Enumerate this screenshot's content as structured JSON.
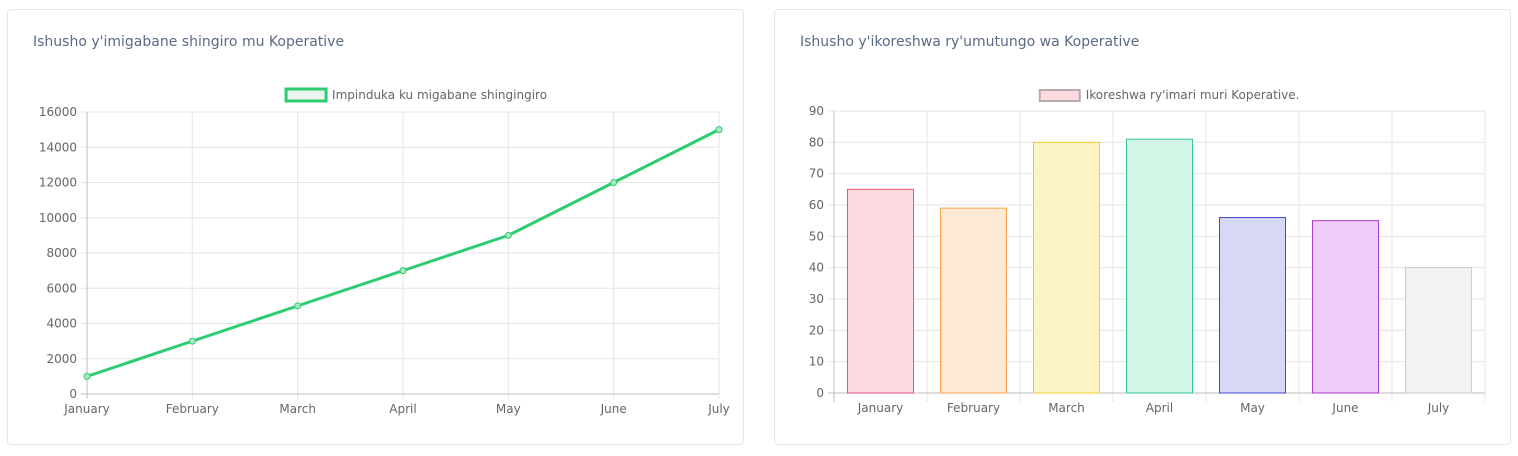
{
  "chart_data": [
    {
      "type": "line",
      "title": "Ishusho y'imigabane shingiro mu Koperative",
      "categories": [
        "January",
        "February",
        "March",
        "April",
        "May",
        "June",
        "July"
      ],
      "series": [
        {
          "name": "Impinduka ku migabane shingingiro",
          "values": [
            1000,
            3000,
            5000,
            7000,
            9000,
            12000,
            15000
          ],
          "color": "#2ecc71"
        }
      ],
      "yticks": [
        "0",
        "2000",
        "4000",
        "6000",
        "8000",
        "10000",
        "12000",
        "14000",
        "16000"
      ],
      "ylim": [
        0,
        16000
      ],
      "legend": "top-center",
      "grid": true
    },
    {
      "type": "bar",
      "title": "Ishusho y'ikoreshwa ry'umutungo wa Koperative",
      "categories": [
        "January",
        "February",
        "March",
        "April",
        "May",
        "June",
        "July"
      ],
      "series": [
        {
          "name": "Ikoreshwa ry'imari muri Koperative.",
          "values": [
            65,
            59,
            80,
            81,
            56,
            55,
            40
          ],
          "legend_fill": "#fdd9e0",
          "legend_stroke": "#b5aaae"
        }
      ],
      "bar_colors": [
        {
          "fill": "#fddbe1",
          "stroke": "#e8507a"
        },
        {
          "fill": "#fde9d4",
          "stroke": "#f5a34a"
        },
        {
          "fill": "#fcf3c6",
          "stroke": "#f2cc2c"
        },
        {
          "fill": "#d3f5e6",
          "stroke": "#35c896"
        },
        {
          "fill": "#d7d8f5",
          "stroke": "#4048c8"
        },
        {
          "fill": "#f0ccfa",
          "stroke": "#a43ad0"
        },
        {
          "fill": "#f1f2f2",
          "stroke": "#c9cbcf"
        }
      ],
      "yticks": [
        "0",
        "10",
        "20",
        "30",
        "40",
        "50",
        "60",
        "70",
        "80",
        "90"
      ],
      "ylim": [
        0,
        90
      ],
      "legend": "top-center",
      "grid": true
    }
  ]
}
